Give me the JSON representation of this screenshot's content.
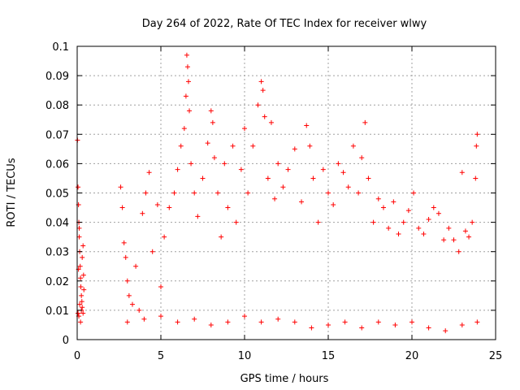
{
  "chart_data": {
    "type": "scatter",
    "title": "Day 264 of 2022, Rate Of TEC Index for receiver wlwy",
    "xlabel": "GPS time / hours",
    "ylabel": "ROTI / TECUs",
    "xlim": [
      0,
      25
    ],
    "ylim": [
      0,
      0.1
    ],
    "xticks": [
      "0",
      "5",
      "10",
      "15",
      "20",
      "25"
    ],
    "yticks": [
      "0",
      "0.01",
      "0.02",
      "0.03",
      "0.04",
      "0.05",
      "0.06",
      "0.07",
      "0.08",
      "0.09",
      "0.1"
    ],
    "grid": true,
    "marker": "+",
    "color": "#ff0000",
    "series": [
      {
        "points": [
          [
            0.02,
            0.068
          ],
          [
            0.05,
            0.052
          ],
          [
            0.08,
            0.046
          ],
          [
            0.1,
            0.04
          ],
          [
            0.12,
            0.035
          ],
          [
            0.15,
            0.03
          ],
          [
            0.18,
            0.025
          ],
          [
            0.2,
            0.021
          ],
          [
            0.22,
            0.018
          ],
          [
            0.25,
            0.015
          ],
          [
            0.28,
            0.013
          ],
          [
            0.3,
            0.011
          ],
          [
            0.05,
            0.009
          ],
          [
            0.1,
            0.008
          ],
          [
            0.15,
            0.012
          ],
          [
            0.2,
            0.006
          ],
          [
            0.25,
            0.01
          ],
          [
            0.3,
            0.028
          ],
          [
            0.35,
            0.032
          ],
          [
            0.38,
            0.022
          ],
          [
            0.4,
            0.017
          ],
          [
            0.35,
            0.009
          ],
          [
            0.12,
            0.038
          ],
          [
            0.08,
            0.024
          ],
          [
            2.6,
            0.052
          ],
          [
            2.7,
            0.045
          ],
          [
            2.8,
            0.033
          ],
          [
            2.9,
            0.028
          ],
          [
            3.0,
            0.02
          ],
          [
            3.1,
            0.015
          ],
          [
            3.3,
            0.012
          ],
          [
            3.5,
            0.025
          ],
          [
            3.7,
            0.01
          ],
          [
            3.9,
            0.043
          ],
          [
            4.1,
            0.05
          ],
          [
            4.3,
            0.057
          ],
          [
            4.5,
            0.03
          ],
          [
            4.8,
            0.046
          ],
          [
            5.0,
            0.018
          ],
          [
            5.2,
            0.035
          ],
          [
            5.5,
            0.045
          ],
          [
            5.8,
            0.05
          ],
          [
            6.0,
            0.058
          ],
          [
            6.2,
            0.066
          ],
          [
            6.4,
            0.072
          ],
          [
            6.5,
            0.083
          ],
          [
            6.55,
            0.097
          ],
          [
            6.6,
            0.093
          ],
          [
            6.65,
            0.088
          ],
          [
            6.7,
            0.078
          ],
          [
            6.8,
            0.06
          ],
          [
            7.0,
            0.05
          ],
          [
            7.2,
            0.042
          ],
          [
            7.5,
            0.055
          ],
          [
            7.8,
            0.067
          ],
          [
            8.0,
            0.078
          ],
          [
            8.1,
            0.074
          ],
          [
            8.2,
            0.062
          ],
          [
            8.4,
            0.05
          ],
          [
            8.6,
            0.035
          ],
          [
            8.8,
            0.06
          ],
          [
            9.0,
            0.045
          ],
          [
            9.3,
            0.066
          ],
          [
            9.5,
            0.04
          ],
          [
            9.8,
            0.058
          ],
          [
            10.0,
            0.072
          ],
          [
            10.2,
            0.05
          ],
          [
            10.5,
            0.066
          ],
          [
            10.8,
            0.08
          ],
          [
            11.0,
            0.088
          ],
          [
            11.1,
            0.085
          ],
          [
            11.2,
            0.076
          ],
          [
            11.4,
            0.055
          ],
          [
            11.6,
            0.074
          ],
          [
            11.8,
            0.048
          ],
          [
            12.0,
            0.06
          ],
          [
            12.3,
            0.052
          ],
          [
            12.6,
            0.058
          ],
          [
            13.0,
            0.065
          ],
          [
            13.4,
            0.047
          ],
          [
            13.7,
            0.073
          ],
          [
            13.9,
            0.066
          ],
          [
            14.1,
            0.055
          ],
          [
            14.4,
            0.04
          ],
          [
            14.7,
            0.058
          ],
          [
            15.0,
            0.05
          ],
          [
            15.3,
            0.046
          ],
          [
            15.6,
            0.06
          ],
          [
            15.9,
            0.057
          ],
          [
            16.2,
            0.052
          ],
          [
            16.5,
            0.066
          ],
          [
            16.8,
            0.05
          ],
          [
            17.0,
            0.062
          ],
          [
            17.2,
            0.074
          ],
          [
            17.4,
            0.055
          ],
          [
            17.7,
            0.04
          ],
          [
            18.0,
            0.048
          ],
          [
            18.3,
            0.045
          ],
          [
            18.6,
            0.038
          ],
          [
            18.9,
            0.047
          ],
          [
            19.2,
            0.036
          ],
          [
            19.5,
            0.04
          ],
          [
            19.8,
            0.044
          ],
          [
            20.1,
            0.05
          ],
          [
            20.4,
            0.038
          ],
          [
            20.7,
            0.036
          ],
          [
            21.0,
            0.041
          ],
          [
            21.3,
            0.045
          ],
          [
            21.6,
            0.043
          ],
          [
            21.9,
            0.034
          ],
          [
            22.2,
            0.038
          ],
          [
            22.5,
            0.034
          ],
          [
            22.8,
            0.03
          ],
          [
            23.0,
            0.057
          ],
          [
            23.2,
            0.037
          ],
          [
            23.4,
            0.035
          ],
          [
            23.6,
            0.04
          ],
          [
            23.8,
            0.055
          ],
          [
            23.85,
            0.066
          ],
          [
            23.9,
            0.07
          ],
          [
            3.0,
            0.006
          ],
          [
            4.0,
            0.007
          ],
          [
            5.0,
            0.008
          ],
          [
            6.0,
            0.006
          ],
          [
            7.0,
            0.007
          ],
          [
            8.0,
            0.005
          ],
          [
            9.0,
            0.006
          ],
          [
            10.0,
            0.008
          ],
          [
            11.0,
            0.006
          ],
          [
            12.0,
            0.007
          ],
          [
            13.0,
            0.006
          ],
          [
            14.0,
            0.004
          ],
          [
            15.0,
            0.005
          ],
          [
            16.0,
            0.006
          ],
          [
            17.0,
            0.004
          ],
          [
            18.0,
            0.006
          ],
          [
            19.0,
            0.005
          ],
          [
            20.0,
            0.006
          ],
          [
            21.0,
            0.004
          ],
          [
            22.0,
            0.003
          ],
          [
            23.0,
            0.005
          ],
          [
            23.9,
            0.006
          ]
        ]
      }
    ]
  }
}
